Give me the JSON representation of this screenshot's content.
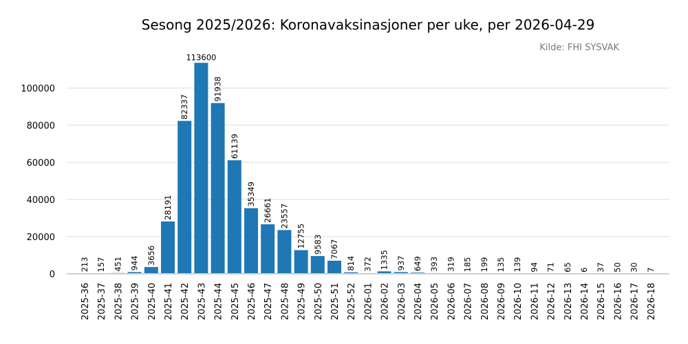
{
  "chart_data": {
    "type": "bar",
    "title": "Sesong 2025/2026: Koronavaksinasjoner per uke, per 2026-04-29",
    "source": "Kilde: FHI SYSVAK",
    "xlabel": "",
    "ylabel": "",
    "ylim": [
      0,
      120000
    ],
    "yticks": [
      0,
      20000,
      40000,
      60000,
      80000,
      100000
    ],
    "grid": true,
    "bar_color": "#1f77b4",
    "categories": [
      "2025-36",
      "2025-37",
      "2025-38",
      "2025-39",
      "2025-40",
      "2025-41",
      "2025-42",
      "2025-43",
      "2025-44",
      "2025-45",
      "2025-46",
      "2025-47",
      "2025-48",
      "2025-49",
      "2025-50",
      "2025-51",
      "2025-52",
      "2026-01",
      "2026-02",
      "2026-03",
      "2026-04",
      "2026-05",
      "2026-06",
      "2026-07",
      "2026-08",
      "2026-09",
      "2026-10",
      "2026-11",
      "2026-12",
      "2026-13",
      "2026-14",
      "2026-15",
      "2026-16",
      "2026-17",
      "2026-18"
    ],
    "values": [
      213,
      157,
      451,
      944,
      3656,
      28191,
      82337,
      113600,
      91938,
      61139,
      35349,
      26661,
      23557,
      12755,
      9583,
      7067,
      814,
      372,
      1335,
      937,
      649,
      393,
      319,
      185,
      199,
      135,
      139,
      94,
      71,
      65,
      6,
      37,
      50,
      30,
      7
    ]
  }
}
